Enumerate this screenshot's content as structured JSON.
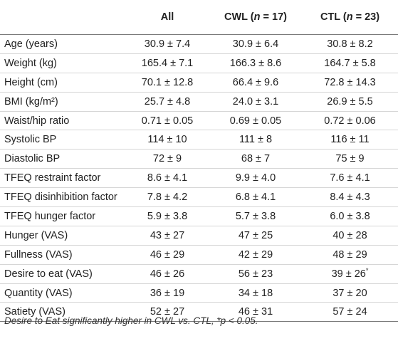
{
  "table": {
    "headers": {
      "c0": "",
      "c1": "All",
      "c2_prefix": "CWL (",
      "c2_n": "n",
      "c2_suffix": " = 17)",
      "c3_prefix": "CTL (",
      "c3_n": "n",
      "c3_suffix": " = 23)"
    },
    "rows": [
      {
        "label": "Age (years)",
        "all": "30.9 ± 7.4",
        "cwl": "30.9 ± 6.4",
        "ctl": "30.8 ± 8.2"
      },
      {
        "label": "Weight (kg)",
        "all": "165.4 ± 7.1",
        "cwl": "166.3 ± 8.6",
        "ctl": "164.7 ± 5.8"
      },
      {
        "label": "Height (cm)",
        "all": "70.1 ± 12.8",
        "cwl": "66.4 ± 9.6",
        "ctl": "72.8 ± 14.3"
      },
      {
        "label": "BMI (kg/m²)",
        "all": "25.7 ± 4.8",
        "cwl": "24.0 ± 3.1",
        "ctl": "26.9 ± 5.5"
      },
      {
        "label": "Waist/hip ratio",
        "all": "0.71 ± 0.05",
        "cwl": "0.69 ± 0.05",
        "ctl": "0.72 ± 0.06"
      },
      {
        "label": "Systolic BP",
        "all": "114 ± 10",
        "cwl": "111 ± 8",
        "ctl": "116 ± 11"
      },
      {
        "label": "Diastolic BP",
        "all": "72 ± 9",
        "cwl": "68 ± 7",
        "ctl": "75 ± 9"
      },
      {
        "label": "TFEQ restraint factor",
        "all": "8.6 ± 4.1",
        "cwl": "9.9 ± 4.0",
        "ctl": "7.6 ± 4.1"
      },
      {
        "label": "TFEQ disinhibition factor",
        "all": "7.8 ± 4.2",
        "cwl": "6.8 ± 4.1",
        "ctl": "8.4 ± 4.3"
      },
      {
        "label": "TFEQ hunger factor",
        "all": "5.9 ± 3.8",
        "cwl": "5.7 ± 3.8",
        "ctl": "6.0 ± 3.8"
      },
      {
        "label": "Hunger (VAS)",
        "all": "43 ± 27",
        "cwl": "47 ± 25",
        "ctl": "40 ± 28"
      },
      {
        "label": "Fullness (VAS)",
        "all": "46 ± 29",
        "cwl": "42 ± 29",
        "ctl": "48 ± 29"
      },
      {
        "label": "Desire to eat (VAS)",
        "all": "46 ± 26",
        "cwl": "56 ± 23",
        "ctl": "39 ± 26",
        "ctl_mark": "*"
      },
      {
        "label": "Quantity (VAS)",
        "all": "36 ± 19",
        "cwl": "34 ± 18",
        "ctl": "37 ± 20"
      },
      {
        "label": "Satiety (VAS)",
        "all": "52 ± 27",
        "cwl": "46 ± 31",
        "ctl": "57 ± 24"
      }
    ]
  },
  "footnote": "Desire to Eat significantly higher in CWL vs. CTL, *p < 0.05."
}
